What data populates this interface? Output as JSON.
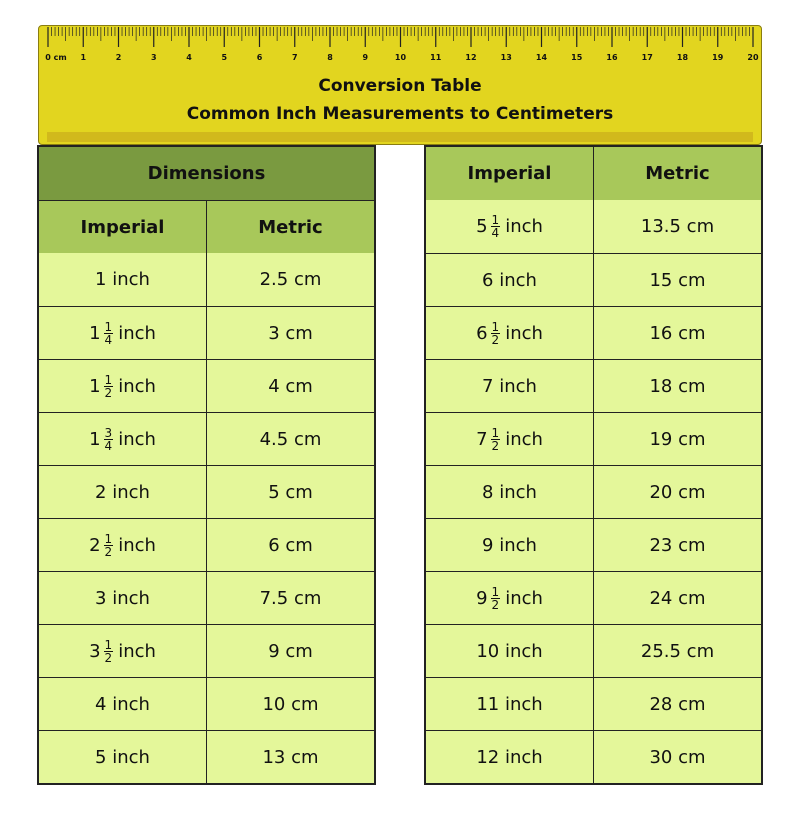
{
  "ruler": {
    "labels": [
      "0 cm",
      "1",
      "2",
      "3",
      "4",
      "5",
      "6",
      "7",
      "8",
      "9",
      "10",
      "11",
      "12",
      "13",
      "14",
      "15",
      "16",
      "17",
      "18",
      "19",
      "20"
    ],
    "color": "#e2d51f"
  },
  "header": {
    "title": "Conversion Table",
    "subtitle": "Common Inch Measurements to Centimeters"
  },
  "left_table": {
    "group_header": "Dimensions",
    "col_imperial": "Imperial",
    "col_metric": "Metric",
    "rows": [
      {
        "whole": "1",
        "unit": "inch",
        "metric": "2.5 cm"
      },
      {
        "whole": "1",
        "num": "1",
        "den": "4",
        "unit": "inch",
        "metric": "3 cm"
      },
      {
        "whole": "1",
        "num": "1",
        "den": "2",
        "unit": "inch",
        "metric": "4 cm"
      },
      {
        "whole": "1",
        "num": "3",
        "den": "4",
        "unit": "inch",
        "metric": "4.5 cm"
      },
      {
        "whole": "2",
        "unit": "inch",
        "metric": "5 cm"
      },
      {
        "whole": "2",
        "num": "1",
        "den": "2",
        "unit": "inch",
        "metric": "6 cm"
      },
      {
        "whole": "3",
        "unit": "inch",
        "metric": "7.5 cm"
      },
      {
        "whole": "3",
        "num": "1",
        "den": "2",
        "unit": "inch",
        "metric": "9 cm"
      },
      {
        "whole": "4",
        "unit": "inch",
        "metric": "10 cm"
      },
      {
        "whole": "5",
        "unit": "inch",
        "metric": "13 cm"
      }
    ]
  },
  "right_table": {
    "col_imperial": "Imperial",
    "col_metric": "Metric",
    "rows": [
      {
        "whole": "5",
        "num": "1",
        "den": "4",
        "unit": "inch",
        "metric": "13.5 cm"
      },
      {
        "whole": "6",
        "unit": "inch",
        "metric": "15 cm"
      },
      {
        "whole": "6",
        "num": "1",
        "den": "2",
        "unit": "inch",
        "metric": "16 cm"
      },
      {
        "whole": "7",
        "unit": "inch",
        "metric": "18 cm"
      },
      {
        "whole": "7",
        "num": "1",
        "den": "2",
        "unit": "inch",
        "metric": "19 cm"
      },
      {
        "whole": "8",
        "unit": "inch",
        "metric": "20 cm"
      },
      {
        "whole": "9",
        "unit": "inch",
        "metric": "23 cm"
      },
      {
        "whole": "9",
        "num": "1",
        "den": "2",
        "unit": "inch",
        "metric": "24 cm"
      },
      {
        "whole": "10",
        "unit": "inch",
        "metric": "25.5 cm"
      },
      {
        "whole": "11",
        "unit": "inch",
        "metric": "28 cm"
      },
      {
        "whole": "12",
        "unit": "inch",
        "metric": "30 cm"
      }
    ]
  },
  "colors": {
    "group_header": "#7a9a40",
    "column_header": "#a8c85a",
    "cell": "#e4f79a"
  }
}
